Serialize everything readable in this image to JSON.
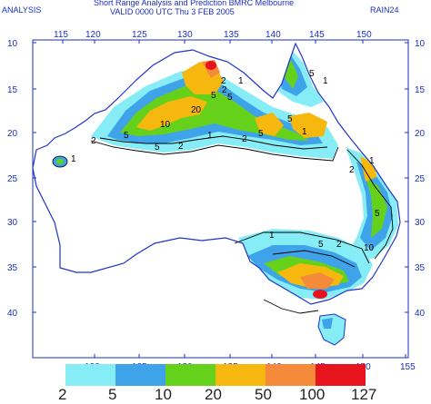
{
  "header": {
    "left_label": "ANALYSIS",
    "title_line1": "Short Range Analysis and Prediction   BMRC Melbourne",
    "title_line2": "VALID 0000 UTC   Thu   3 FEB 2005",
    "right_label": "RAIN24"
  },
  "axes": {
    "lon_top": [
      "115",
      "120",
      "125",
      "130",
      "135",
      "140",
      "145",
      "150"
    ],
    "lon_bottom": [
      "120",
      "125",
      "130",
      "135",
      "140",
      "145",
      "150",
      "155"
    ],
    "lat_left": [
      "10",
      "15",
      "20",
      "25",
      "30",
      "35",
      "40"
    ],
    "lat_right": [
      "10",
      "15",
      "20",
      "25",
      "30",
      "35",
      "40"
    ]
  },
  "contour_labels": [
    "2",
    "5",
    "1",
    "2",
    "5",
    "20",
    "10",
    "5",
    "2",
    "5",
    "2",
    "1",
    "5",
    "5",
    "5",
    "1",
    "2",
    "2",
    "5",
    "1",
    "5",
    "2",
    "10",
    "1",
    "1",
    "1"
  ],
  "legend": {
    "labels": [
      "2",
      "5",
      "10",
      "20",
      "50",
      "100",
      "127"
    ],
    "colors": [
      "#86ecf5",
      "#3fa3ea",
      "#66d11a",
      "#f6b70e",
      "#f48a3a",
      "#e8141d"
    ]
  },
  "colors": {
    "axis_blue": "#1a2fbf",
    "coast_blue": "#1e35c9"
  }
}
